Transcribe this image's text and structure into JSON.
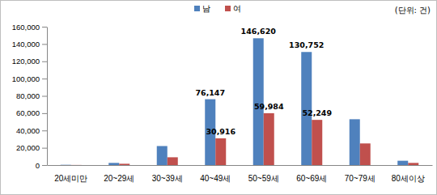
{
  "chart_data": {
    "type": "bar",
    "y_label": "(단위: 건)",
    "categories": [
      "20세미만",
      "20~29세",
      "30~39세",
      "40~49세",
      "50~59세",
      "60~69세",
      "70~79세",
      "80세이상"
    ],
    "series": [
      {
        "name": "남",
        "color": "#4f81bd",
        "values": [
          300,
          2500,
          22000,
          76147,
          146620,
          130752,
          53000,
          5000
        ],
        "value_labels": [
          null,
          null,
          null,
          "76,147",
          "146,620",
          "130,752",
          null,
          null
        ]
      },
      {
        "name": "여",
        "color": "#c0504d",
        "values": [
          100,
          1500,
          9000,
          30916,
          59984,
          52249,
          25000,
          2500
        ],
        "value_labels": [
          null,
          null,
          null,
          "30,916",
          "59,984",
          "52,249",
          null,
          null
        ]
      }
    ],
    "ylim": [
      0,
      160000
    ],
    "yticks": [
      0,
      {
        "value": 20000,
        "label": "20,000"
      },
      {
        "value": 40000,
        "label": "40,000"
      },
      {
        "value": 60000,
        "label": "60,000"
      },
      {
        "value": 80000,
        "label": "80,000"
      },
      {
        "value": 100000,
        "label": "100,000"
      },
      {
        "value": 120000,
        "label": "120,000"
      },
      {
        "value": 140000,
        "label": "140,000"
      },
      {
        "value": 160000,
        "label": "160,000"
      }
    ],
    "grid": false,
    "legend": "top",
    "data_labels": true
  }
}
